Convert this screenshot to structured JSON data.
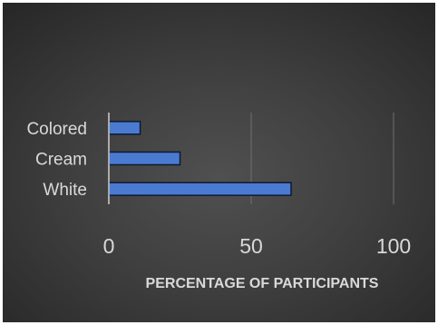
{
  "chart_data": {
    "type": "bar",
    "orientation": "horizontal",
    "categories": [
      "Colored",
      "Cream",
      "White"
    ],
    "values": [
      11,
      25,
      64
    ],
    "title": "",
    "xlabel": "PERCENTAGE OF PARTICIPANTS",
    "ylabel": "",
    "xlim": [
      0,
      100
    ],
    "xticks": [
      "0",
      "50",
      "100"
    ],
    "grid": "vertical",
    "legend": "none",
    "colors": {
      "bar": "#4a7bd0",
      "bar_edge": "#0d1a33",
      "grid": "#6f6f6f",
      "axis": "#d0d0d0",
      "text": "#d9d9d9"
    }
  }
}
